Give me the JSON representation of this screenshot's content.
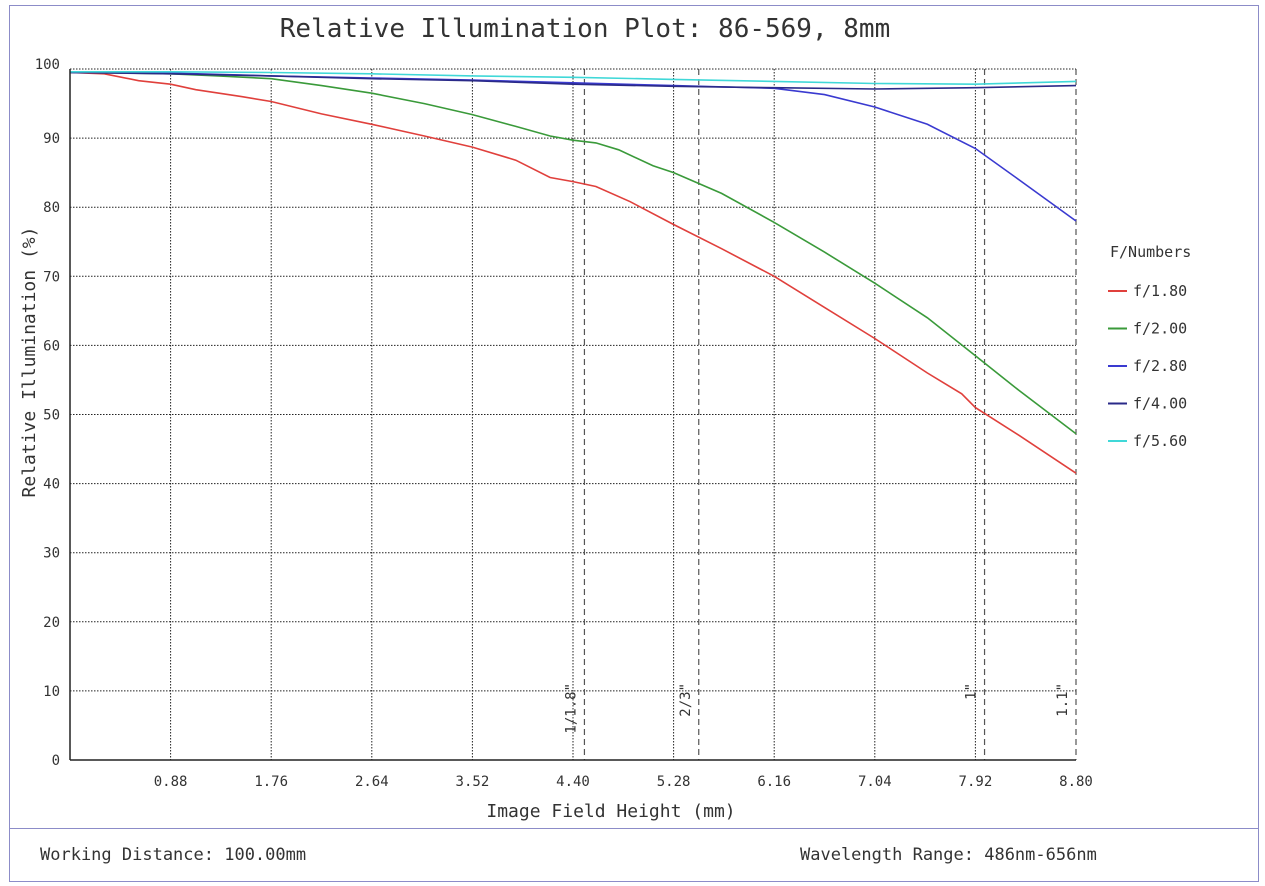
{
  "chart_data": {
    "type": "line",
    "title": "Relative Illumination Plot: 86-569, 8mm",
    "xlabel": "Image Field Height (mm)",
    "ylabel": "Relative Illumination (%)",
    "xlim": [
      0,
      8.8
    ],
    "ylim": [
      0,
      100
    ],
    "x_tick_labels": [
      "0.88",
      "1.76",
      "2.64",
      "3.52",
      "4.40",
      "5.28",
      "6.16",
      "7.04",
      "7.92",
      "8.80"
    ],
    "x_ticks": [
      0.88,
      1.76,
      2.64,
      3.52,
      4.4,
      5.28,
      6.16,
      7.04,
      7.92,
      8.8
    ],
    "y_tick_labels": [
      "0",
      "10",
      "20",
      "30",
      "40",
      "50",
      "60",
      "70",
      "80",
      "90",
      "100"
    ],
    "y_ticks": [
      0,
      10,
      20,
      30,
      40,
      50,
      60,
      70,
      80,
      90,
      100
    ],
    "grid": true,
    "legend_title": "F/Numbers",
    "legend_position": "right",
    "sensor_markers": [
      {
        "label": "1/1.8\"",
        "x": 4.5
      },
      {
        "label": "2/3\"",
        "x": 5.5
      },
      {
        "label": "1\"",
        "x": 8.0
      },
      {
        "label": "1.1\"",
        "x": 8.8
      }
    ],
    "series": [
      {
        "name": "f/1.80",
        "color": "#e0403c",
        "x": [
          0,
          0.3,
          0.6,
          0.88,
          1.1,
          1.5,
          1.76,
          2.2,
          2.64,
          3.1,
          3.52,
          3.9,
          4.2,
          4.4,
          4.6,
          4.9,
          5.28,
          5.7,
          6.16,
          6.6,
          7.04,
          7.5,
          7.8,
          7.92,
          8.3,
          8.8
        ],
        "y": [
          99.5,
          99.3,
          98.3,
          97.8,
          97.0,
          96.0,
          95.3,
          93.5,
          92.0,
          90.3,
          88.7,
          86.8,
          84.3,
          83.7,
          83.0,
          80.8,
          77.5,
          74.0,
          70.0,
          65.5,
          61.0,
          56.0,
          53.0,
          51.0,
          47.0,
          41.5
        ]
      },
      {
        "name": "f/2.00",
        "color": "#3a9a3a",
        "x": [
          0,
          0.5,
          0.88,
          1.3,
          1.76,
          2.2,
          2.64,
          3.1,
          3.52,
          3.9,
          4.2,
          4.4,
          4.6,
          4.8,
          5.1,
          5.28,
          5.7,
          6.16,
          6.6,
          7.04,
          7.5,
          7.92,
          8.3,
          8.8
        ],
        "y": [
          99.5,
          99.4,
          99.3,
          99.0,
          98.6,
          97.6,
          96.5,
          95.0,
          93.4,
          91.7,
          90.3,
          89.7,
          89.3,
          88.3,
          86.0,
          85.0,
          82.0,
          77.8,
          73.5,
          69.0,
          64.0,
          58.5,
          53.5,
          47.2
        ]
      },
      {
        "name": "f/2.80",
        "color": "#3a3ad0",
        "x": [
          0,
          0.88,
          1.76,
          2.64,
          3.52,
          4.4,
          5.28,
          6.16,
          6.6,
          7.04,
          7.5,
          7.92,
          8.3,
          8.8
        ],
        "y": [
          99.5,
          99.4,
          99.0,
          98.7,
          98.4,
          98.0,
          97.6,
          97.2,
          96.3,
          94.5,
          92.0,
          88.5,
          84.0,
          78.0
        ]
      },
      {
        "name": "f/4.00",
        "color": "#2a2a88",
        "x": [
          0,
          0.88,
          1.76,
          2.64,
          3.52,
          4.4,
          5.28,
          6.16,
          7.04,
          7.92,
          8.8
        ],
        "y": [
          99.5,
          99.3,
          99.0,
          98.6,
          98.3,
          97.8,
          97.5,
          97.3,
          97.1,
          97.3,
          97.6
        ]
      },
      {
        "name": "f/5.60",
        "color": "#40d8d8",
        "x": [
          0,
          0.88,
          1.76,
          2.64,
          3.52,
          4.4,
          5.28,
          6.16,
          7.04,
          7.92,
          8.8
        ],
        "y": [
          99.6,
          99.6,
          99.5,
          99.3,
          99.0,
          98.8,
          98.5,
          98.2,
          97.9,
          97.8,
          98.2
        ]
      }
    ]
  },
  "footer": {
    "working_distance": "Working Distance: 100.00mm",
    "wavelength_range": "Wavelength Range: 486nm-656nm"
  }
}
